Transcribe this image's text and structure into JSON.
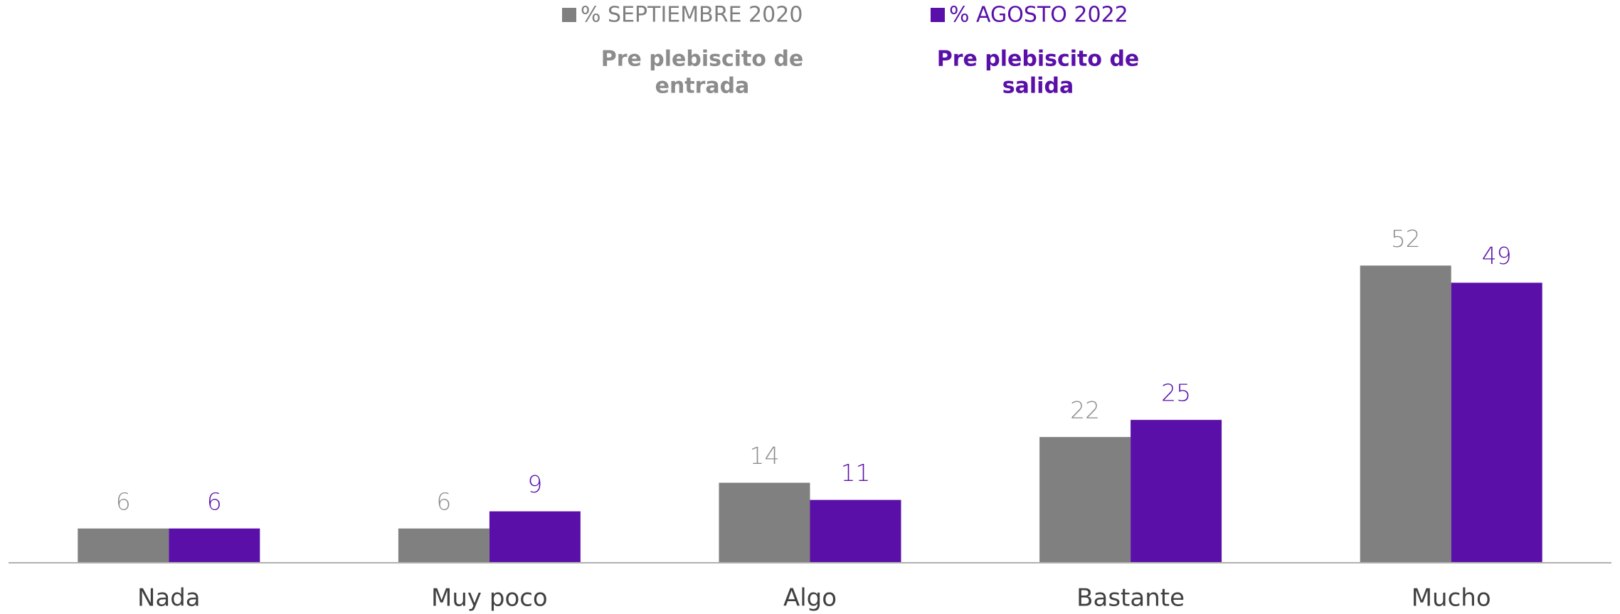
{
  "chart_data": {
    "type": "bar",
    "categories": [
      "Nada",
      "Muy poco",
      "Algo",
      "Bastante",
      "Mucho"
    ],
    "series": [
      {
        "name": "% SEPTIEMBRE 2020",
        "color": "#808080",
        "description": [
          "Pre plebiscito de",
          "entrada"
        ],
        "values": [
          6,
          6,
          14,
          22,
          52
        ]
      },
      {
        "name": "% AGOSTO 2022",
        "color": "#5a10a8",
        "description": [
          "Pre plebiscito de",
          "salida"
        ],
        "values": [
          6,
          9,
          11,
          25,
          49
        ]
      }
    ],
    "ylim": [
      0,
      60
    ],
    "grid": false,
    "legend": "top"
  }
}
